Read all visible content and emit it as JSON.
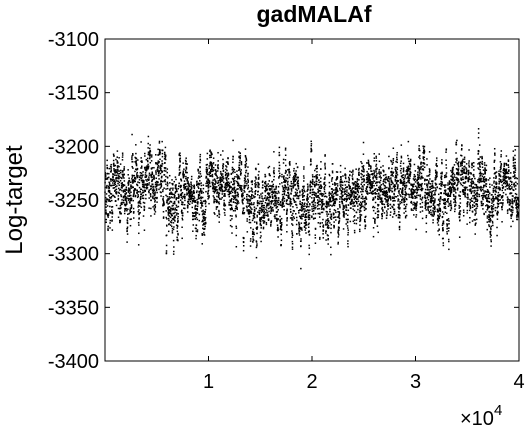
{
  "chart_data": {
    "type": "scatter",
    "title": "gadMALAf",
    "xlabel": "",
    "ylabel": "Log-target",
    "xlim": [
      0,
      40000
    ],
    "ylim": [
      -3400,
      -3100
    ],
    "x_tick_values": [
      10000,
      20000,
      30000,
      40000
    ],
    "x_tick_labels": [
      "1",
      "2",
      "3",
      "4"
    ],
    "x_multiplier_label": "×10",
    "x_multiplier_exponent": "4",
    "y_tick_values": [
      -3100,
      -3150,
      -3200,
      -3250,
      -3300,
      -3350,
      -3400
    ],
    "y_tick_labels": [
      "-3100",
      "-3150",
      "-3200",
      "-3250",
      "-3300",
      "-3350",
      "-3400"
    ],
    "marker_color": "#000000",
    "grid": false,
    "series": [
      {
        "trace_profile": [
          {
            "x": 0,
            "mean": -3240
          },
          {
            "x": 2000,
            "mean": -3243
          },
          {
            "x": 4000,
            "mean": -3230
          },
          {
            "x": 5000,
            "mean": -3235
          },
          {
            "x": 7000,
            "mean": -3250
          },
          {
            "x": 9000,
            "mean": -3245
          },
          {
            "x": 11000,
            "mean": -3242
          },
          {
            "x": 13000,
            "mean": -3238
          },
          {
            "x": 15000,
            "mean": -3255
          },
          {
            "x": 17000,
            "mean": -3252
          },
          {
            "x": 19000,
            "mean": -3250
          },
          {
            "x": 20500,
            "mean": -3262
          },
          {
            "x": 22000,
            "mean": -3248
          },
          {
            "x": 24000,
            "mean": -3240
          },
          {
            "x": 26000,
            "mean": -3238
          },
          {
            "x": 28000,
            "mean": -3245
          },
          {
            "x": 30000,
            "mean": -3240
          },
          {
            "x": 32000,
            "mean": -3245
          },
          {
            "x": 34000,
            "mean": -3235
          },
          {
            "x": 36000,
            "mean": -3238
          },
          {
            "x": 38000,
            "mean": -3245
          },
          {
            "x": 40000,
            "mean": -3242
          }
        ],
        "spread": 17,
        "n_points": 6000
      }
    ]
  }
}
